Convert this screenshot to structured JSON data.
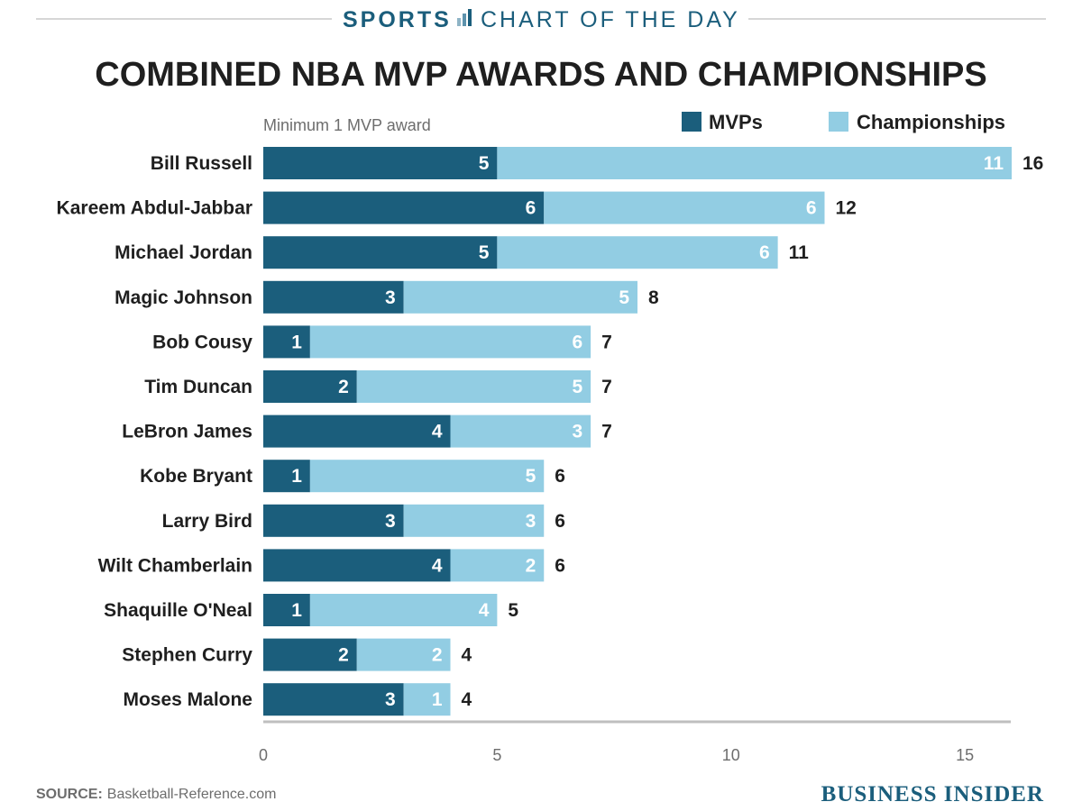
{
  "header": {
    "section": "SPORTS",
    "series_title": "CHART OF THE DAY",
    "icon": "bar-chart-icon"
  },
  "colors": {
    "mvps": "#1b5e7c",
    "championships": "#92cde3",
    "header": "#1b5e7c"
  },
  "chart_data": {
    "type": "bar",
    "orientation": "horizontal",
    "stacked": true,
    "title": "COMBINED NBA MVP AWARDS AND CHAMPIONSHIPS",
    "subtitle": "Minimum 1 MVP award",
    "categories": [
      "Bill Russell",
      "Kareem Abdul-Jabbar",
      "Michael Jordan",
      "Magic Johnson",
      "Bob Cousy",
      "Tim Duncan",
      "LeBron James",
      "Kobe Bryant",
      "Larry Bird",
      "Wilt Chamberlain",
      "Shaquille O'Neal",
      "Stephen Curry",
      "Moses Malone"
    ],
    "series": [
      {
        "name": "MVPs",
        "values": [
          5,
          6,
          5,
          3,
          1,
          2,
          4,
          1,
          3,
          4,
          1,
          2,
          3
        ]
      },
      {
        "name": "Championships",
        "values": [
          11,
          6,
          6,
          5,
          6,
          5,
          3,
          5,
          3,
          2,
          4,
          2,
          1
        ]
      }
    ],
    "totals": [
      16,
      12,
      11,
      8,
      7,
      7,
      7,
      6,
      6,
      6,
      5,
      4,
      4
    ],
    "xlim": [
      0,
      16
    ],
    "xticks": [
      0,
      5,
      10,
      15
    ],
    "xlabel": "",
    "ylabel": "",
    "grid": false,
    "legend_position": "top-right"
  },
  "footer": {
    "source_label": "SOURCE:",
    "source_text": "Basketball-Reference.com",
    "brand": "BUSINESS INSIDER"
  }
}
